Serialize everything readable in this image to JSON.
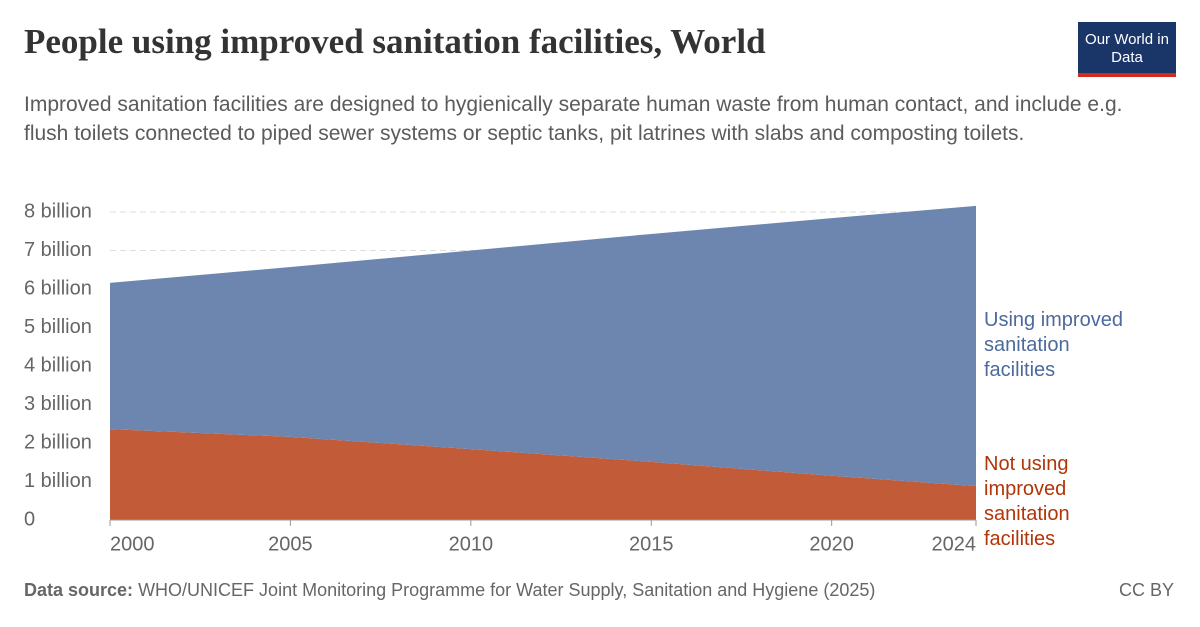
{
  "chart_data": {
    "type": "stacked-area",
    "title": "People using improved sanitation facilities, World",
    "subtitle": "Improved sanitation facilities are designed to hygienically separate human waste from human contact, and include e.g. flush toilets connected to piped sewer systems or septic tanks, pit latrines with slabs and composting toilets.",
    "logo": "Our World in Data",
    "source_label": "Data source:",
    "source": "WHO/UNICEF Joint Monitoring Programme for Water Supply, Sanitation and Hygiene (2025)",
    "license": "CC BY",
    "x": [
      2000,
      2005,
      2010,
      2015,
      2020,
      2024
    ],
    "series": [
      {
        "name": "Not using improved sanitation facilities",
        "color": "#c15b38",
        "label_color": "#b13507",
        "values": [
          2.36,
          2.16,
          1.84,
          1.51,
          1.15,
          0.88
        ]
      },
      {
        "name": "Using improved sanitation facilities",
        "color": "#6d86b0",
        "label_color": "#4c6a9c",
        "values": [
          3.8,
          4.41,
          5.16,
          5.92,
          6.69,
          7.28
        ]
      }
    ],
    "xlim": [
      2000,
      2024
    ],
    "xticks": [
      2000,
      2005,
      2010,
      2015,
      2020,
      2024
    ],
    "ylim": [
      0,
      8
    ],
    "yticks": [
      0,
      {
        "value": 1,
        "label": "1 billion"
      },
      {
        "value": 2,
        "label": "2 billion"
      },
      {
        "value": 3,
        "label": "3 billion"
      },
      {
        "value": 4,
        "label": "4 billion"
      },
      {
        "value": 5,
        "label": "5 billion"
      },
      {
        "value": 6,
        "label": "6 billion"
      },
      {
        "value": 7,
        "label": "7 billion"
      },
      {
        "value": 8,
        "label": "8 billion"
      }
    ],
    "grid": true
  }
}
